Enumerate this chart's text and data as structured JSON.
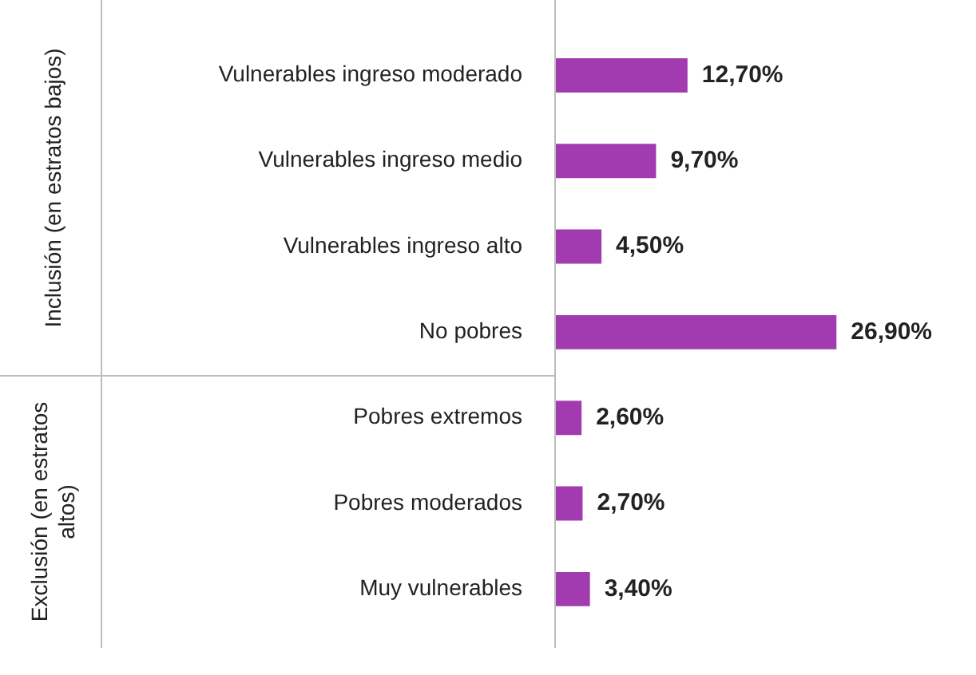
{
  "chart_data": {
    "type": "bar",
    "orientation": "horizontal",
    "categories": [
      "Vulnerables ingreso moderado",
      "Vulnerables ingreso medio",
      "Vulnerables ingreso alto",
      "No pobres",
      "Pobres extremos",
      "Pobres moderados",
      "Muy vulnerables"
    ],
    "values": [
      12.7,
      9.7,
      4.5,
      26.9,
      2.6,
      2.7,
      3.4
    ],
    "value_labels": [
      "12,70%",
      "9,70%",
      "4,50%",
      "26,90%",
      "2,60%",
      "2,70%",
      "3,40%"
    ],
    "color": "#a23bb0",
    "tick_labels": "y",
    "grid": false,
    "legend": false,
    "annotations": [
      "Inclusión (en estratos bajos)",
      "Exclusión (en estratos altos)"
    ]
  }
}
